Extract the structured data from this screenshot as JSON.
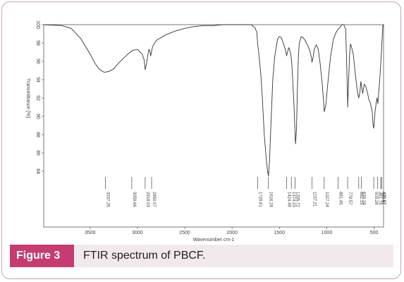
{
  "caption": {
    "figure_label": "Figure 3",
    "text": "FTIR spectrum of PBCF."
  },
  "colors": {
    "frame_border": "#c9a3b2",
    "caption_band": "#f1e9ee",
    "figure_label_bg": "#c43c70",
    "spectrum_line": "#333333"
  },
  "chart_data": {
    "type": "line",
    "title": "",
    "xlabel": "Wavenumber cm-1",
    "ylabel": "Transmittance [%]",
    "xlim": [
      3990,
      400
    ],
    "ylim": [
      84,
      100
    ],
    "x_ticks": [
      3500,
      3000,
      2500,
      2000,
      1500,
      1000,
      500
    ],
    "y_ticks": [
      84,
      86,
      88,
      90,
      92,
      94,
      96,
      98,
      100
    ],
    "grid": false,
    "series": [
      {
        "values_x": [
          3990,
          3800,
          3700,
          3600,
          3500,
          3450,
          3400,
          3350,
          3300,
          3250,
          3200,
          3150,
          3100,
          3050,
          3000,
          2950,
          2930,
          2918,
          2905,
          2880,
          2870,
          2860,
          2840,
          2800,
          2700,
          2600,
          2500,
          2400,
          2300,
          2200,
          2100,
          2000,
          1900,
          1800,
          1760,
          1740,
          1730,
          1720,
          1700,
          1680,
          1660,
          1640,
          1625,
          1616,
          1605,
          1590,
          1570,
          1550,
          1520,
          1500,
          1480,
          1460,
          1440,
          1424,
          1410,
          1400,
          1380,
          1370,
          1360,
          1345,
          1335,
          1330,
          1320,
          1310,
          1300,
          1290,
          1270,
          1250,
          1230,
          1200,
          1180,
          1160,
          1157,
          1145,
          1130,
          1110,
          1090,
          1070,
          1050,
          1030,
          1027,
          1010,
          990,
          960,
          930,
          900,
          880,
          860,
          840,
          820,
          800,
          790,
          780,
          779,
          770,
          760,
          750,
          740,
          720,
          700,
          680,
          662,
          650,
          640,
          633,
          620,
          605,
          590,
          570,
          555,
          540,
          520,
          510,
          503,
          490,
          470,
          460,
          440,
          425,
          415,
          410,
          405,
          400
        ],
        "values_y": [
          100,
          99.9,
          99.6,
          98.5,
          96.8,
          95.8,
          95.1,
          94.8,
          94.9,
          95.2,
          95.8,
          96.3,
          96.8,
          97.2,
          97.3,
          96.8,
          96.2,
          95.1,
          95.7,
          97.3,
          97.2,
          96.6,
          97.6,
          98.3,
          98.9,
          99.3,
          99.6,
          99.8,
          99.9,
          99.9,
          100,
          100,
          100,
          100,
          99.7,
          99.2,
          98.0,
          97.0,
          95.0,
          92.0,
          88.0,
          85.5,
          84.0,
          83.5,
          85.0,
          89.0,
          94.0,
          96.5,
          98.4,
          98.7,
          98.6,
          98.0,
          97.4,
          96.6,
          97.2,
          97.5,
          96.8,
          95.8,
          94.0,
          91.0,
          88.2,
          87.0,
          88.5,
          93.0,
          96.5,
          98.0,
          98.7,
          98.6,
          98.3,
          97.7,
          97.2,
          96.3,
          95.9,
          96.4,
          97.4,
          97.8,
          97.3,
          95.8,
          93.8,
          91.2,
          90.5,
          91.2,
          93.5,
          96.5,
          98.4,
          99.2,
          99.5,
          99.7,
          100,
          100,
          99.5,
          96.0,
          91.8,
          91.0,
          93.5,
          96.5,
          97.9,
          97.6,
          96.8,
          94.8,
          93.0,
          92.0,
          92.6,
          93.8,
          93.3,
          92.5,
          93.5,
          93.3,
          92.6,
          91.8,
          91.5,
          90.5,
          89.0,
          88.7,
          90.5,
          92.0,
          91.4,
          94.0,
          96.5,
          98.5,
          99.5,
          100,
          100
        ]
      }
    ],
    "peak_labels": [
      {
        "x": 3337.26,
        "label": "3337.26"
      },
      {
        "x": 3059.66,
        "label": "3059.66"
      },
      {
        "x": 2918.03,
        "label": "2918.03"
      },
      {
        "x": 2850.07,
        "label": "2850.07"
      },
      {
        "x": 1729.61,
        "label": "1729.61"
      },
      {
        "x": 1616.28,
        "label": "1616.28"
      },
      {
        "x": 1424.49,
        "label": "1424.49"
      },
      {
        "x": 1374.23,
        "label": "1374.23"
      },
      {
        "x": 1335.72,
        "label": "1335.72"
      },
      {
        "x": 1157.21,
        "label": "1157.21"
      },
      {
        "x": 1027.24,
        "label": "1027.24"
      },
      {
        "x": 881.45,
        "label": "881.45"
      },
      {
        "x": 779.57,
        "label": "779.57"
      },
      {
        "x": 662.15,
        "label": "662.15"
      },
      {
        "x": 633.24,
        "label": "633.24"
      },
      {
        "x": 503.28,
        "label": "503.28"
      },
      {
        "x": 461.74,
        "label": "461.74"
      },
      {
        "x": 429.61,
        "label": "429.61"
      },
      {
        "x": 420.57,
        "label": "420.57"
      }
    ]
  }
}
